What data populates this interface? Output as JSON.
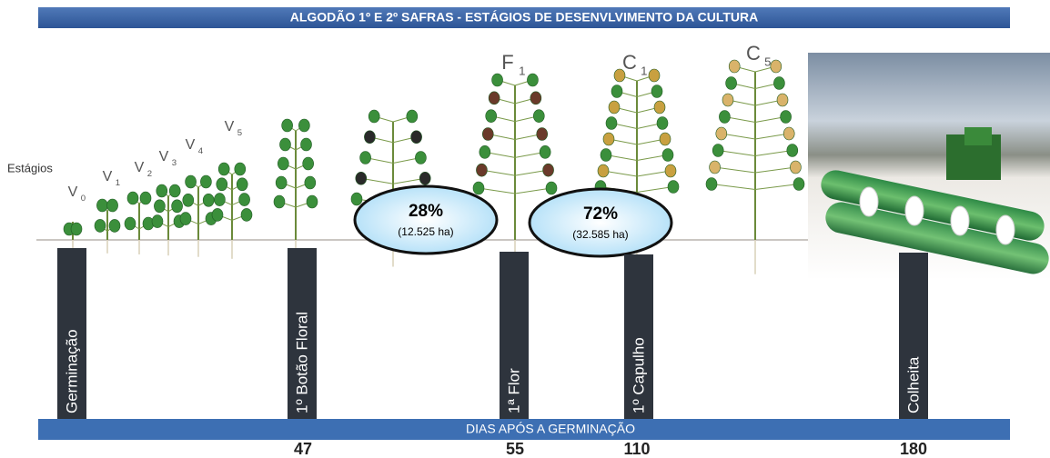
{
  "header": {
    "title": "ALGODÃO 1º E 2º SAFRAS - ESTÁGIOS DE DESENVLVIMENTO DA CULTURA"
  },
  "stages_label": "Estágios",
  "stages": [
    {
      "base": "V",
      "sub": "0"
    },
    {
      "base": "V",
      "sub": "1"
    },
    {
      "base": "V",
      "sub": "2"
    },
    {
      "base": "V",
      "sub": "3"
    },
    {
      "base": "V",
      "sub": "4"
    },
    {
      "base": "V",
      "sub": "5"
    },
    {
      "base": "F",
      "sub": "1"
    },
    {
      "base": "C",
      "sub": "1"
    },
    {
      "base": "C",
      "sub": "5"
    }
  ],
  "bubbles": [
    {
      "percent": "28%",
      "area": "(12.525 ha)"
    },
    {
      "percent": "72%",
      "area": "(32.585 ha)"
    }
  ],
  "phases": [
    "Germinação",
    "1º Botão Floral",
    "1ª Flor",
    "1º Capulho",
    "Colheita"
  ],
  "footer": {
    "label": "DIAS APÓS A GERMINAÇÃO",
    "days": [
      "47",
      "55",
      "110",
      "180"
    ]
  }
}
